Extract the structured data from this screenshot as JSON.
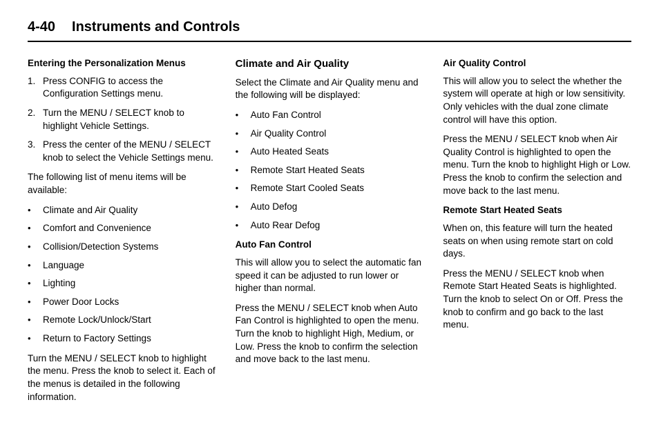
{
  "header": {
    "page_number": "4-40",
    "chapter_title": "Instruments and Controls"
  },
  "col1": {
    "h1": "Entering the Personalization Menus",
    "steps": [
      "Press CONFIG to access the Configuration Settings menu.",
      "Turn the MENU / SELECT knob to highlight Vehicle Settings.",
      "Press the center of the MENU / SELECT knob to select the Vehicle Settings menu."
    ],
    "p1": "The following list of menu items will be available:",
    "menu_items": [
      "Climate and Air Quality",
      "Comfort and Convenience",
      "Collision/Detection Systems",
      "Language",
      "Lighting",
      "Power Door Locks",
      "Remote Lock/Unlock/Start",
      "Return to Factory Settings"
    ],
    "p2": "Turn the MENU / SELECT knob to highlight the menu. Press the knob to select it. Each of the menus is detailed in the following information."
  },
  "col2": {
    "h1": "Climate and Air Quality",
    "p1": "Select the Climate and Air Quality menu and the following will be displayed:",
    "items": [
      "Auto Fan Control",
      "Air Quality Control",
      "Auto Heated Seats",
      "Remote Start Heated Seats",
      "Remote Start Cooled Seats",
      "Auto Defog",
      "Auto Rear Defog"
    ],
    "h2": "Auto Fan Control",
    "p2": "This will allow you to select the automatic fan speed it can be adjusted to run lower or higher than normal.",
    "p3": "Press the MENU / SELECT knob when Auto Fan Control is highlighted to open the menu. Turn the knob to highlight High, Medium, or Low. Press the knob to confirm the selection and move back to the last menu."
  },
  "col3": {
    "h1": "Air Quality Control",
    "p1": "This will allow you to select the whether the system will operate at high or low sensitivity. Only vehicles with the dual zone climate control will have this option.",
    "p2": "Press the MENU / SELECT knob when Air Quality Control is highlighted to open the menu. Turn the knob to highlight High or Low. Press the knob to confirm the selection and move back to the last menu.",
    "h2": "Remote Start Heated Seats",
    "p3": "When on, this feature will turn the heated seats on when using remote start on cold days.",
    "p4": "Press the MENU / SELECT knob when Remote Start Heated Seats is highlighted. Turn the knob to select On or Off. Press the knob to confirm and go back to the last menu."
  }
}
